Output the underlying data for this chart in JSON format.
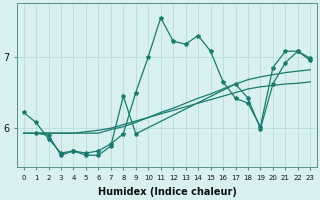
{
  "xlabel": "Humidex (Indice chaleur)",
  "bg_color": "#d8f0f0",
  "line_color": "#1a7a6e",
  "grid_color": "#b0d8d8",
  "yticks": [
    6,
    7
  ],
  "xlim": [
    -0.5,
    23.5
  ],
  "ylim": [
    5.45,
    7.75
  ],
  "line1_x": [
    0,
    1,
    2,
    3,
    4,
    5,
    6,
    7,
    8,
    9,
    10,
    11,
    12,
    13,
    14,
    15,
    16,
    17,
    18,
    19,
    20,
    21,
    22,
    23
  ],
  "line1_y": [
    6.22,
    6.08,
    5.85,
    5.65,
    5.68,
    5.65,
    5.68,
    5.78,
    5.92,
    6.5,
    7.0,
    7.55,
    7.22,
    7.18,
    7.3,
    7.08,
    6.65,
    6.42,
    6.35,
    6.02,
    6.85,
    7.08,
    7.08,
    6.95
  ],
  "line2_x": [
    1,
    2,
    3,
    4,
    5,
    6,
    7,
    8,
    9,
    17,
    18,
    19,
    20,
    21,
    22,
    23
  ],
  "line2_y": [
    5.93,
    5.9,
    5.62,
    5.68,
    5.62,
    5.62,
    5.75,
    6.45,
    5.92,
    6.62,
    6.42,
    5.99,
    6.62,
    6.92,
    7.08,
    6.98
  ],
  "line3_x": [
    0,
    1,
    2,
    3,
    4,
    5,
    6,
    7,
    8,
    9,
    10,
    11,
    12,
    13,
    14,
    15,
    16,
    17,
    18,
    19,
    20,
    21,
    22,
    23
  ],
  "line3_y": [
    5.93,
    5.93,
    5.93,
    5.93,
    5.93,
    5.93,
    5.93,
    5.98,
    6.02,
    6.08,
    6.15,
    6.22,
    6.28,
    6.35,
    6.42,
    6.48,
    6.55,
    6.62,
    6.68,
    6.72,
    6.75,
    6.78,
    6.8,
    6.82
  ],
  "line4_x": [
    0,
    1,
    2,
    3,
    4,
    5,
    6,
    7,
    8,
    9,
    10,
    11,
    12,
    13,
    14,
    15,
    16,
    17,
    18,
    19,
    20,
    21,
    22,
    23
  ],
  "line4_y": [
    5.93,
    5.93,
    5.93,
    5.93,
    5.93,
    5.95,
    5.97,
    6.0,
    6.05,
    6.1,
    6.15,
    6.2,
    6.25,
    6.3,
    6.35,
    6.4,
    6.45,
    6.5,
    6.55,
    6.58,
    6.6,
    6.62,
    6.63,
    6.65
  ]
}
